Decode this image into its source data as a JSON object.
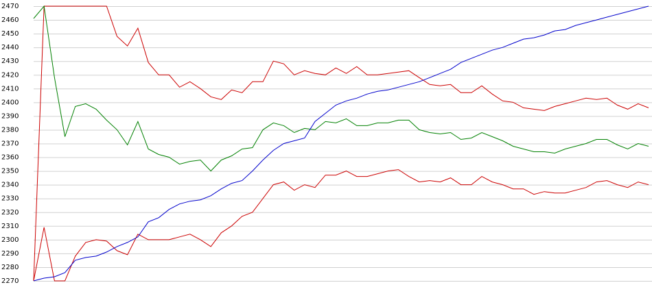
{
  "chart_data": {
    "type": "line",
    "categories": [
      null,
      null,
      null,
      null,
      null,
      null,
      null,
      null,
      null,
      null,
      null,
      null,
      null,
      null,
      null,
      null,
      null,
      null,
      null,
      null,
      null,
      null,
      null,
      null,
      null,
      null,
      null,
      null,
      null,
      null,
      null,
      null,
      null,
      null,
      null,
      null,
      null,
      null,
      null,
      null,
      null,
      null,
      null,
      null,
      null,
      null,
      null,
      null,
      null,
      null,
      null,
      null,
      null,
      null,
      null,
      null,
      null,
      null,
      null,
      null
    ],
    "series": [
      {
        "color": "#cc0000",
        "values": [
          2270,
          2470,
          2470,
          2470,
          2470,
          2470,
          2470,
          2470,
          2448,
          2441,
          2454,
          2429,
          2420,
          2420,
          2411,
          2415,
          2410,
          2404,
          2402,
          2409,
          2407,
          2415,
          2415,
          2430,
          2428,
          2420,
          2423,
          2421,
          2420,
          2425,
          2421,
          2426,
          2420,
          2420,
          2421,
          2422,
          2423,
          2418,
          2413,
          2412,
          2413,
          2407,
          2407,
          2412,
          2406,
          2401,
          2400,
          2396,
          2395,
          2394,
          2397,
          2399,
          2401,
          2403,
          2402,
          2403,
          2398,
          2395,
          2399,
          2396
        ]
      },
      {
        "color": "#008000",
        "values": [
          2461,
          2470,
          2418,
          2375,
          2397,
          2399,
          2395,
          2387,
          2380,
          2369,
          2386,
          2366,
          2362,
          2360,
          2355,
          2357,
          2358,
          2350,
          2358,
          2361,
          2366,
          2367,
          2380,
          2385,
          2383,
          2378,
          2381,
          2380,
          2386,
          2385,
          2388,
          2383,
          2383,
          2385,
          2385,
          2387,
          2387,
          2380,
          2378,
          2377,
          2378,
          2373,
          2374,
          2378,
          2375,
          2372,
          2368,
          2366,
          2364,
          2364,
          2363,
          2366,
          2368,
          2370,
          2373,
          2373,
          2369,
          2366,
          2370,
          2368
        ]
      },
      {
        "color": "#cc0000",
        "values": [
          2270,
          2309,
          2270,
          2270,
          2288,
          2298,
          2300,
          2299,
          2292,
          2289,
          2304,
          2300,
          2300,
          2300,
          2302,
          2304,
          2300,
          2295,
          2305,
          2310,
          2317,
          2320,
          2330,
          2340,
          2342,
          2336,
          2340,
          2338,
          2347,
          2347,
          2350,
          2346,
          2346,
          2348,
          2350,
          2351,
          2346,
          2342,
          2343,
          2342,
          2345,
          2340,
          2340,
          2346,
          2342,
          2340,
          2337,
          2337,
          2333,
          2335,
          2334,
          2334,
          2336,
          2338,
          2342,
          2343,
          2340,
          2338,
          2342,
          2340
        ]
      },
      {
        "color": "#0000cc",
        "values": [
          2270,
          2272,
          2273,
          2276,
          2285,
          2287,
          2288,
          2291,
          2295,
          2298,
          2302,
          2313,
          2316,
          2322,
          2326,
          2328,
          2329,
          2332,
          2337,
          2341,
          2343,
          2350,
          2358,
          2365,
          2370,
          2372,
          2374,
          2386,
          2392,
          2398,
          2401,
          2403,
          2406,
          2408,
          2409,
          2411,
          2413,
          2415,
          2418,
          2421,
          2424,
          2429,
          2432,
          2435,
          2438,
          2440,
          2443,
          2446,
          2447,
          2449,
          2452,
          2453,
          2456,
          2458,
          2460,
          2462,
          2464,
          2466,
          2468,
          2470
        ]
      }
    ],
    "ylim": [
      2270,
      2470
    ],
    "yticks": [
      2270,
      2280,
      2290,
      2300,
      2310,
      2320,
      2330,
      2340,
      2350,
      2360,
      2370,
      2380,
      2390,
      2400,
      2410,
      2420,
      2430,
      2440,
      2450,
      2460,
      2470
    ],
    "grid": true
  }
}
